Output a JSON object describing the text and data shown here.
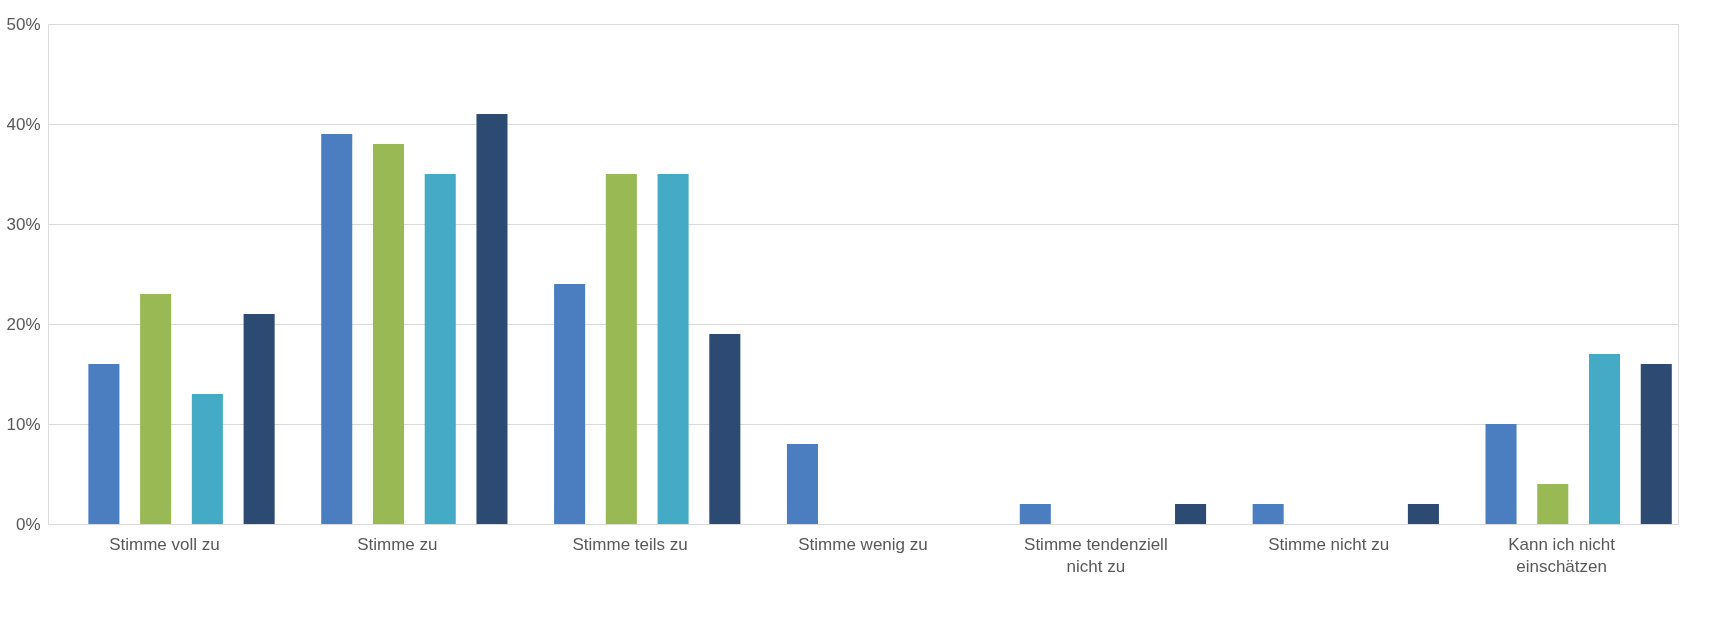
{
  "chart_data": {
    "type": "bar",
    "categories": [
      "Stimme voll zu",
      "Stimme zu",
      "Stimme teils zu",
      "Stimme wenig zu",
      "Stimme tendenziell nicht zu",
      "Stimme nicht zu",
      "Kann ich nicht einschätzen"
    ],
    "series": [
      {
        "color": "#4a7ec0",
        "values": [
          16,
          39,
          24,
          8,
          2,
          2,
          10
        ]
      },
      {
        "color": "#98b954",
        "values": [
          23,
          38,
          35,
          0,
          0,
          0,
          4
        ]
      },
      {
        "color": "#45aac6",
        "values": [
          13,
          35,
          35,
          0,
          0,
          0,
          17
        ]
      },
      {
        "color": "#2c4a72",
        "values": [
          21,
          41,
          19,
          0,
          2,
          2,
          16
        ]
      }
    ],
    "ylim": [
      0,
      50
    ],
    "yticks": [
      {
        "value": 0,
        "label": "0%"
      },
      {
        "value": 10,
        "label": "10%"
      },
      {
        "value": 20,
        "label": "20%"
      },
      {
        "value": 30,
        "label": "30%"
      },
      {
        "value": 40,
        "label": "40%"
      },
      {
        "value": 50,
        "label": "50%"
      }
    ],
    "grid": "y",
    "legend": false
  }
}
